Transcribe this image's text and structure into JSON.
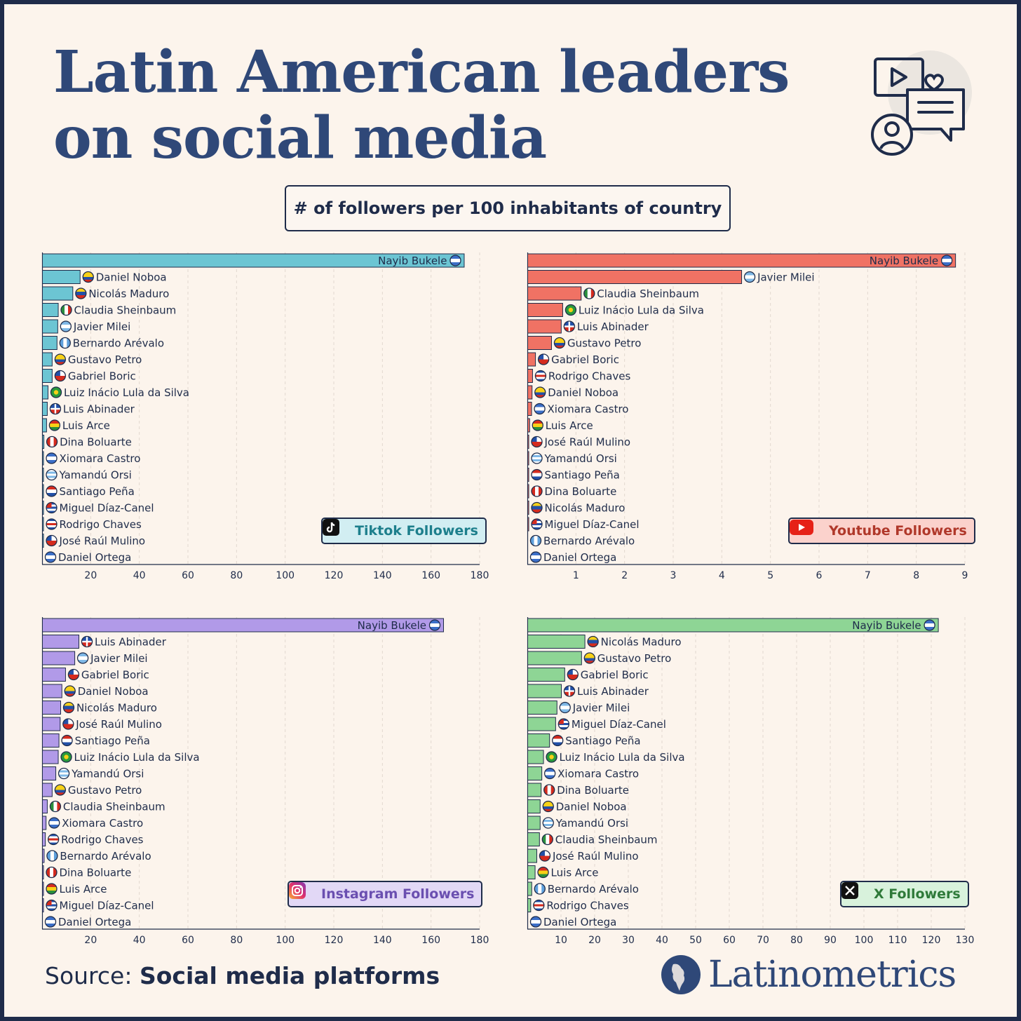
{
  "header": {
    "title_line1": "Latin American leaders",
    "title_line2": "on social media",
    "subtitle": "# of followers per 100 inhabitants of country"
  },
  "footer": {
    "source_label": "Source:",
    "source_text": "Social media platforms",
    "brand": "Latinometrics"
  },
  "colors": {
    "navy": "#1f2c4a",
    "tiktok": "#6cc5d3",
    "youtube": "#f07264",
    "instagram": "#b19ae8",
    "x": "#8ed595",
    "background": "#fcf4ec"
  },
  "chart_data": [
    {
      "type": "bar",
      "orientation": "horizontal",
      "badge": "Tiktok Followers",
      "icon": "tiktok-icon",
      "color": "#6cc5d3",
      "badge_bg": "#d2eef2",
      "badge_text_color": "#1d7f8c",
      "xlim": [
        0,
        180
      ],
      "xticks": [
        20,
        40,
        60,
        80,
        100,
        120,
        140,
        160,
        180
      ],
      "categories": [
        "Nayib Bukele",
        "Daniel Noboa",
        "Nicolás Maduro",
        "Claudia Sheinbaum",
        "Javier Milei",
        "Bernardo Arévalo",
        "Gustavo Petro",
        "Gabriel Boric",
        "Luiz Inácio Lula da Silva",
        "Luis Abinader",
        "Luis Arce",
        "Dina Boluarte",
        "Xiomara Castro",
        "Yamandú Orsi",
        "Santiago Peña",
        "Miguel Díaz-Canel",
        "Rodrigo Chaves",
        "José Raúl Mulino",
        "Daniel Ortega"
      ],
      "flags": [
        "sv",
        "ec",
        "ve",
        "mx",
        "ar",
        "gt",
        "co",
        "cl",
        "br",
        "do",
        "bo",
        "pe",
        "hn",
        "uy",
        "py",
        "cu",
        "cr",
        "pa",
        "ni"
      ],
      "values": [
        173.5,
        15.5,
        12.5,
        6.5,
        6.3,
        6.0,
        4.0,
        4.0,
        2.3,
        2.0,
        1.7,
        0.6,
        0.2,
        0.2,
        0.2,
        0.1,
        0.1,
        0.1,
        0
      ]
    },
    {
      "type": "bar",
      "orientation": "horizontal",
      "badge": "Youtube Followers",
      "icon": "youtube-icon",
      "color": "#f07264",
      "badge_bg": "#fbd2cc",
      "badge_text_color": "#b0382a",
      "xlim": [
        0,
        9
      ],
      "xticks": [
        1,
        2,
        3,
        4,
        5,
        6,
        7,
        8,
        9
      ],
      "categories": [
        "Nayib Bukele",
        "Javier Milei",
        "Claudia Sheinbaum",
        "Luiz Inácio Lula da Silva",
        "Luis Abinader",
        "Gustavo Petro",
        "Gabriel Boric",
        "Rodrigo Chaves",
        "Daniel Noboa",
        "Xiomara Castro",
        "Luis Arce",
        "José Raúl Mulino",
        "Yamandú Orsi",
        "Santiago Peña",
        "Dina Boluarte",
        "Nicolás Maduro",
        "Miguel Díaz-Canel",
        "Bernardo Arévalo",
        "Daniel Ortega"
      ],
      "flags": [
        "sv",
        "ar",
        "mx",
        "br",
        "do",
        "co",
        "cl",
        "cr",
        "ec",
        "hn",
        "bo",
        "pa",
        "uy",
        "py",
        "pe",
        "ve",
        "cu",
        "gt",
        "ni"
      ],
      "values": [
        8.8,
        4.4,
        1.1,
        0.72,
        0.69,
        0.49,
        0.16,
        0.1,
        0.09,
        0.08,
        0.04,
        0.01,
        0.01,
        0.01,
        0.01,
        0.01,
        0.01,
        0,
        0
      ]
    },
    {
      "type": "bar",
      "orientation": "horizontal",
      "badge": "Instagram Followers",
      "icon": "instagram-icon",
      "color": "#b19ae8",
      "badge_bg": "#e2d8f6",
      "badge_text_color": "#6a4fb0",
      "xlim": [
        0,
        180
      ],
      "xticks": [
        20,
        40,
        60,
        80,
        100,
        120,
        140,
        160,
        180
      ],
      "categories": [
        "Nayib Bukele",
        "Luis Abinader",
        "Javier Milei",
        "Gabriel Boric",
        "Daniel Noboa",
        "Nicolás Maduro",
        "José Raúl Mulino",
        "Santiago Peña",
        "Luiz Inácio Lula da Silva",
        "Yamandú Orsi",
        "Gustavo Petro",
        "Claudia Sheinbaum",
        "Xiomara Castro",
        "Rodrigo Chaves",
        "Bernardo Arévalo",
        "Dina Boluarte",
        "Luis Arce",
        "Miguel Díaz-Canel",
        "Daniel Ortega"
      ],
      "flags": [
        "sv",
        "do",
        "ar",
        "cl",
        "ec",
        "ve",
        "pa",
        "py",
        "br",
        "uy",
        "co",
        "mx",
        "hn",
        "cr",
        "gt",
        "pe",
        "bo",
        "cu",
        "ni"
      ],
      "values": [
        165,
        15,
        13.3,
        9.5,
        8,
        7.5,
        7.3,
        6.8,
        6.5,
        5.5,
        4,
        2,
        1.5,
        1.2,
        0.7,
        0.4,
        0.2,
        0.1,
        0
      ]
    },
    {
      "type": "bar",
      "orientation": "horizontal",
      "badge": "X Followers",
      "icon": "x-icon",
      "color": "#8ed595",
      "badge_bg": "#d8f2dc",
      "badge_text_color": "#2f7a3a",
      "xlim": [
        0,
        130
      ],
      "xticks": [
        10,
        20,
        30,
        40,
        50,
        60,
        70,
        80,
        90,
        100,
        110,
        120,
        130
      ],
      "categories": [
        "Nayib Bukele",
        "Nicolás Maduro",
        "Gustavo Petro",
        "Gabriel Boric",
        "Luis Abinader",
        "Javier Milei",
        "Miguel Díaz-Canel",
        "Santiago Peña",
        "Luiz Inácio Lula da Silva",
        "Xiomara Castro",
        "Dina Boluarte",
        "Daniel Noboa",
        "Yamandú Orsi",
        "Claudia Sheinbaum",
        "José Raúl Mulino",
        "Luis Arce",
        "Bernardo Arévalo",
        "Rodrigo Chaves",
        "Daniel Ortega"
      ],
      "flags": [
        "sv",
        "ve",
        "co",
        "cl",
        "do",
        "ar",
        "cu",
        "py",
        "br",
        "hn",
        "pe",
        "ec",
        "uy",
        "mx",
        "pa",
        "bo",
        "gt",
        "cr",
        "ni"
      ],
      "values": [
        122,
        17,
        16,
        11,
        10,
        8.7,
        8.3,
        6.5,
        4.7,
        4.2,
        4,
        3.7,
        3.7,
        3.5,
        2.7,
        2.2,
        1.2,
        0.9,
        0
      ]
    }
  ]
}
